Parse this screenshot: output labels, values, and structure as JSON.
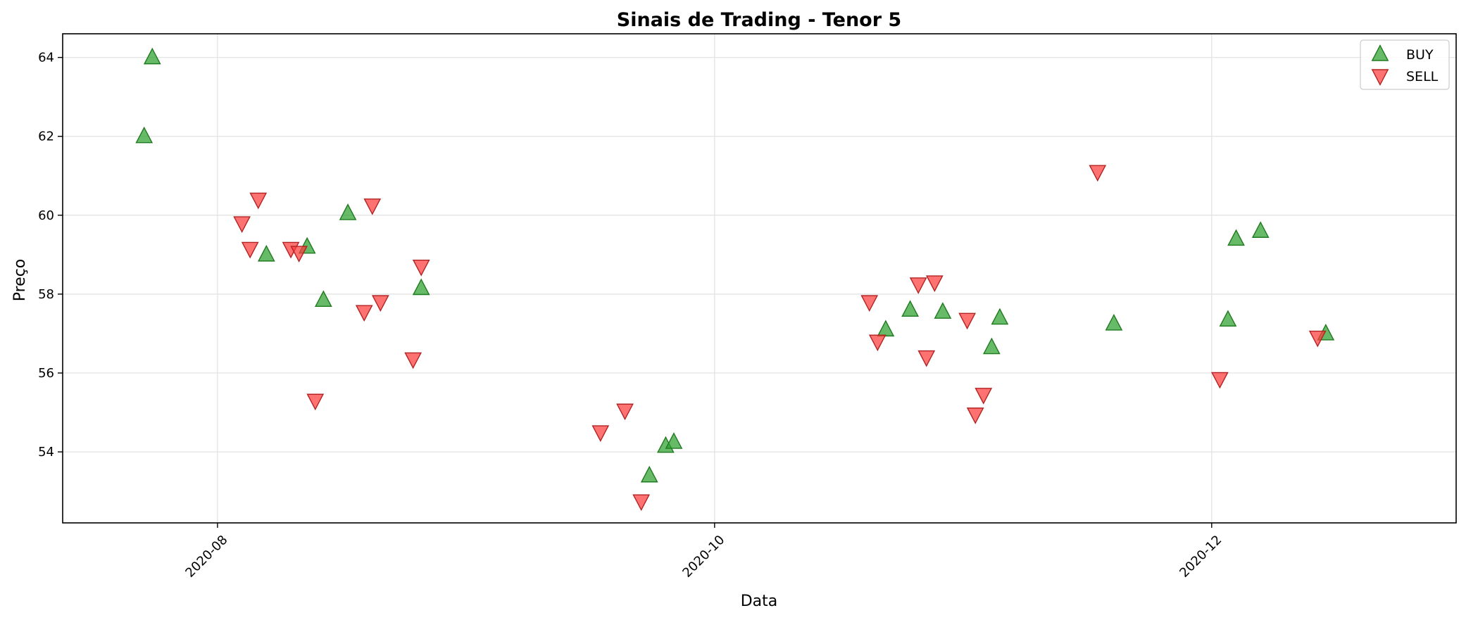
{
  "chart_data": {
    "type": "scatter",
    "title": "Sinais de Trading - Tenor 5",
    "xlabel": "Data",
    "ylabel": "Preço",
    "x_axis_type": "date",
    "xlim": [
      "2020-07-13",
      "2020-12-31"
    ],
    "ylim": [
      52.2,
      64.6
    ],
    "x_ticks": [
      {
        "date": "2020-08-01",
        "label": "2020-08"
      },
      {
        "date": "2020-10-01",
        "label": "2020-10"
      },
      {
        "date": "2020-12-01",
        "label": "2020-12"
      }
    ],
    "y_ticks": [
      {
        "value": 54,
        "label": "54"
      },
      {
        "value": 56,
        "label": "56"
      },
      {
        "value": 58,
        "label": "58"
      },
      {
        "value": 60,
        "label": "60"
      },
      {
        "value": 62,
        "label": "62"
      },
      {
        "value": 64,
        "label": "64"
      }
    ],
    "grid": true,
    "legend_position": "top-right",
    "series": [
      {
        "name": "BUY",
        "marker": "triangle-up",
        "color": "#2ca02c",
        "edge_color": "#1f7a1f",
        "points": [
          {
            "x": "2020-07-23",
            "y": 62.0
          },
          {
            "x": "2020-07-24",
            "y": 64.0
          },
          {
            "x": "2020-08-07",
            "y": 59.0
          },
          {
            "x": "2020-08-12",
            "y": 59.2
          },
          {
            "x": "2020-08-14",
            "y": 57.85
          },
          {
            "x": "2020-08-17",
            "y": 60.05
          },
          {
            "x": "2020-08-26",
            "y": 58.15
          },
          {
            "x": "2020-09-23",
            "y": 53.4
          },
          {
            "x": "2020-09-25",
            "y": 54.15
          },
          {
            "x": "2020-09-26",
            "y": 54.25
          },
          {
            "x": "2020-10-22",
            "y": 57.1
          },
          {
            "x": "2020-10-25",
            "y": 57.6
          },
          {
            "x": "2020-10-29",
            "y": 57.55
          },
          {
            "x": "2020-11-04",
            "y": 56.65
          },
          {
            "x": "2020-11-05",
            "y": 57.4
          },
          {
            "x": "2020-11-19",
            "y": 57.25
          },
          {
            "x": "2020-12-03",
            "y": 57.35
          },
          {
            "x": "2020-12-04",
            "y": 59.4
          },
          {
            "x": "2020-12-07",
            "y": 59.6
          },
          {
            "x": "2020-12-15",
            "y": 57.0
          }
        ]
      },
      {
        "name": "SELL",
        "marker": "triangle-down",
        "color": "#ff3b3b",
        "edge_color": "#b22222",
        "points": [
          {
            "x": "2020-08-04",
            "y": 59.8
          },
          {
            "x": "2020-08-05",
            "y": 59.15
          },
          {
            "x": "2020-08-06",
            "y": 60.4
          },
          {
            "x": "2020-08-10",
            "y": 59.15
          },
          {
            "x": "2020-08-11",
            "y": 59.05
          },
          {
            "x": "2020-08-13",
            "y": 55.3
          },
          {
            "x": "2020-08-19",
            "y": 57.55
          },
          {
            "x": "2020-08-20",
            "y": 60.25
          },
          {
            "x": "2020-08-21",
            "y": 57.8
          },
          {
            "x": "2020-08-25",
            "y": 56.35
          },
          {
            "x": "2020-08-26",
            "y": 58.7
          },
          {
            "x": "2020-09-17",
            "y": 54.5
          },
          {
            "x": "2020-09-20",
            "y": 55.05
          },
          {
            "x": "2020-09-22",
            "y": 52.75
          },
          {
            "x": "2020-10-20",
            "y": 57.8
          },
          {
            "x": "2020-10-21",
            "y": 56.8
          },
          {
            "x": "2020-10-26",
            "y": 58.25
          },
          {
            "x": "2020-10-27",
            "y": 56.4
          },
          {
            "x": "2020-10-28",
            "y": 58.3
          },
          {
            "x": "2020-11-01",
            "y": 57.35
          },
          {
            "x": "2020-11-02",
            "y": 54.95
          },
          {
            "x": "2020-11-03",
            "y": 55.45
          },
          {
            "x": "2020-11-17",
            "y": 61.1
          },
          {
            "x": "2020-12-02",
            "y": 55.85
          },
          {
            "x": "2020-12-14",
            "y": 56.9
          }
        ]
      }
    ]
  }
}
